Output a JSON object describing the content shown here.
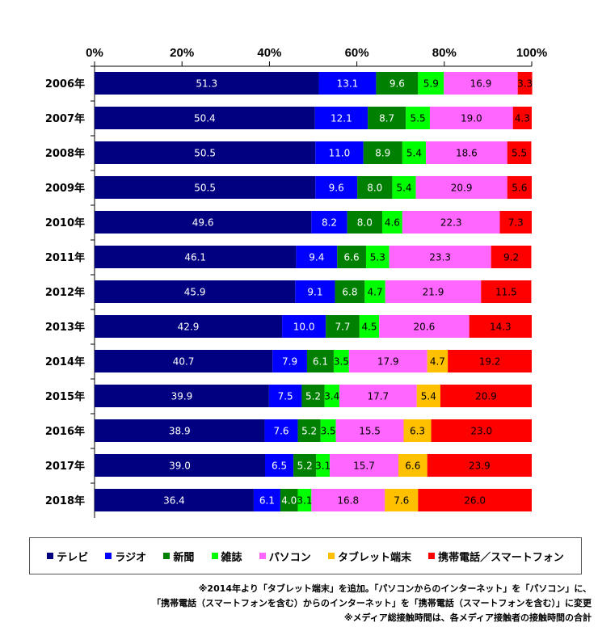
{
  "chart_data": {
    "type": "bar",
    "orientation": "horizontal",
    "stacked": true,
    "percent_stacked": true,
    "xlim": [
      0,
      100
    ],
    "x_ticks": [
      "0%",
      "20%",
      "40%",
      "60%",
      "80%",
      "100%"
    ],
    "categories": [
      "2006年",
      "2007年",
      "2008年",
      "2009年",
      "2010年",
      "2011年",
      "2012年",
      "2013年",
      "2014年",
      "2015年",
      "2016年",
      "2017年",
      "2018年"
    ],
    "series": [
      {
        "name": "テレビ",
        "color": "#000080",
        "label_color": "#ffffff",
        "values": [
          51.3,
          50.4,
          50.5,
          50.5,
          49.6,
          46.1,
          45.9,
          42.9,
          40.7,
          39.9,
          38.9,
          39.0,
          36.4
        ],
        "labels": [
          "51.3",
          "50.4",
          "50.5",
          "50.5",
          "49.6",
          "46.1",
          "45.9",
          "42.9",
          "40.7",
          "39.9",
          "38.9",
          "39.0",
          "36.4"
        ]
      },
      {
        "name": "ラジオ",
        "color": "#0000ff",
        "label_color": "#ffffff",
        "values": [
          13.1,
          12.1,
          11.0,
          9.6,
          8.2,
          9.4,
          9.1,
          10.0,
          7.9,
          7.5,
          7.6,
          6.5,
          6.1
        ],
        "labels": [
          "13.1",
          "12.1",
          "11.0",
          "9.6",
          "8.2",
          "9.4",
          "9.1",
          "10.0",
          "7.9",
          "7.5",
          "7.6",
          "6.5",
          "6.1"
        ]
      },
      {
        "name": "新聞",
        "color": "#008000",
        "label_color": "#ffffff",
        "values": [
          9.6,
          8.7,
          8.9,
          8.0,
          8.0,
          6.6,
          6.8,
          7.7,
          6.1,
          5.2,
          5.2,
          5.2,
          4.0
        ],
        "labels": [
          "9.6",
          "8.7",
          "8.9",
          "8.0",
          "8.0",
          "6.6",
          "6.8",
          "7.7",
          "6.1",
          "5.2",
          "5.2",
          "5.2",
          "4.0"
        ]
      },
      {
        "name": "雑誌",
        "color": "#00ff00",
        "label_color": "#000000",
        "values": [
          5.9,
          5.5,
          5.4,
          5.4,
          4.6,
          5.3,
          4.7,
          4.5,
          3.5,
          3.4,
          3.5,
          3.1,
          3.1
        ],
        "labels": [
          "5.9",
          "5.5",
          "5.4",
          "5.4",
          "4.6",
          "5.3",
          "4.7",
          "4.5",
          "3.5",
          "3.4",
          "3.5",
          "3.1",
          "3.1"
        ]
      },
      {
        "name": "パソコン",
        "color": "#ff66ff",
        "label_color": "#000000",
        "values": [
          16.9,
          19.0,
          18.6,
          20.9,
          22.3,
          23.3,
          21.9,
          20.6,
          17.9,
          17.7,
          15.5,
          15.7,
          16.8
        ],
        "labels": [
          "16.9",
          "19.0",
          "18.6",
          "20.9",
          "22.3",
          "23.3",
          "21.9",
          "20.6",
          "17.9",
          "17.7",
          "15.5",
          "15.7",
          "16.8"
        ]
      },
      {
        "name": "タブレット端末",
        "color": "#ffc000",
        "label_color": "#000000",
        "values": [
          0,
          0,
          0,
          0,
          0,
          0,
          0,
          0,
          4.7,
          5.4,
          6.3,
          6.6,
          7.6
        ],
        "labels": [
          "",
          "",
          "",
          "",
          "",
          "",
          "",
          "",
          "4.7",
          "5.4",
          "6.3",
          "6.6",
          "7.6"
        ]
      },
      {
        "name": "携帯電話／スマートフォン",
        "color": "#ff0000",
        "label_color": "#000000",
        "values": [
          3.3,
          4.3,
          5.5,
          5.6,
          7.3,
          9.2,
          11.5,
          14.3,
          19.2,
          20.9,
          23.0,
          23.9,
          26.0
        ],
        "labels": [
          "3.3",
          "4.3",
          "5.5",
          "5.6",
          "7.3",
          "9.2",
          "11.5",
          "14.3",
          "19.2",
          "20.9",
          "23.0",
          "23.9",
          "26.0"
        ]
      }
    ],
    "legend": "bottom",
    "grid": false
  },
  "legend_items": [
    {
      "label": "テレビ",
      "color": "#000080"
    },
    {
      "label": "ラジオ",
      "color": "#0000ff"
    },
    {
      "label": "新聞",
      "color": "#008000"
    },
    {
      "label": "雑誌",
      "color": "#00ff00"
    },
    {
      "label": "パソコン",
      "color": "#ff66ff"
    },
    {
      "label": "タブレット端末",
      "color": "#ffc000"
    },
    {
      "label": "携帯電話／スマートフォン",
      "color": "#ff0000"
    }
  ],
  "notes": {
    "line1": "※2014年より「タブレット端末」を追加。「パソコンからのインターネット」を「パソコン」に、",
    "line2": "「携帯電話（スマートフォンを含む）からのインターネット」を「携帯電話（スマートフォンを含む）」に変更",
    "line3": "※メディア総接触時間は、各メディア接触者の接触時間の合計"
  }
}
